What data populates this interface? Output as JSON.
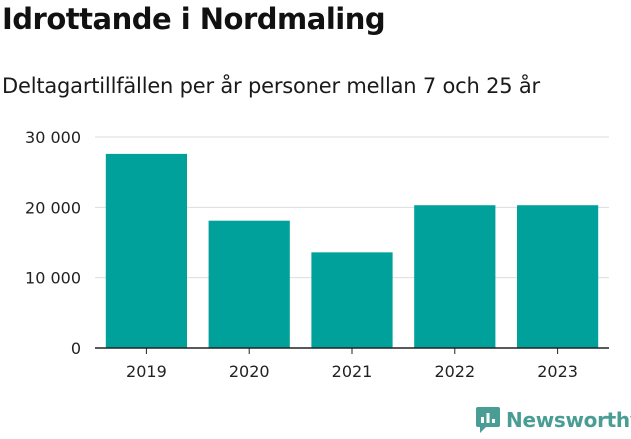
{
  "header": {
    "title": "Idrottande i Nordmaling",
    "subtitle": "Deltagartillfällen per år personer mellan 7 och 25 år"
  },
  "brand": {
    "name": "Newsworthy",
    "color": "#4a9d94",
    "icon": "newsworthy-logo-icon"
  },
  "chart_data": {
    "type": "bar",
    "title": "Idrottande i Nordmaling",
    "subtitle": "Deltagartillfällen per år personer mellan 7 och 25 år",
    "xlabel": "",
    "ylabel": "",
    "categories": [
      "2019",
      "2020",
      "2021",
      "2022",
      "2023"
    ],
    "values": [
      27600,
      18100,
      13600,
      20300,
      20300
    ],
    "ylim": [
      0,
      30000
    ],
    "yticks": [
      0,
      10000,
      20000,
      30000
    ],
    "ytick_labels": [
      "0",
      "10 000",
      "20 000",
      "30 000"
    ],
    "grid": true,
    "bar_color": "#00a19a",
    "grid_color": "#dddddd",
    "axis_color": "#222222"
  }
}
